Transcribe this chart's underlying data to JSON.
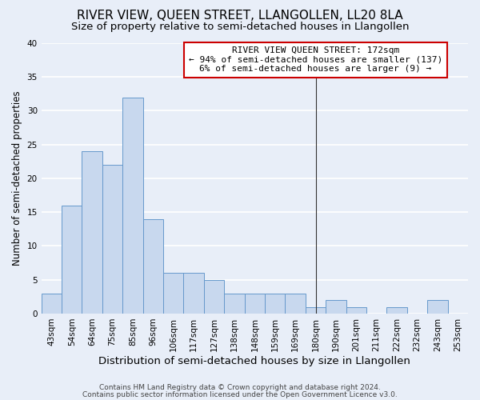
{
  "title": "RIVER VIEW, QUEEN STREET, LLANGOLLEN, LL20 8LA",
  "subtitle": "Size of property relative to semi-detached houses in Llangollen",
  "xlabel": "Distribution of semi-detached houses by size in Llangollen",
  "ylabel": "Number of semi-detached properties",
  "bar_color": "#c8d8ee",
  "bar_edge_color": "#6699cc",
  "bin_labels": [
    "43sqm",
    "54sqm",
    "64sqm",
    "75sqm",
    "85sqm",
    "96sqm",
    "106sqm",
    "117sqm",
    "127sqm",
    "138sqm",
    "148sqm",
    "159sqm",
    "169sqm",
    "180sqm",
    "190sqm",
    "201sqm",
    "211sqm",
    "222sqm",
    "232sqm",
    "243sqm",
    "253sqm"
  ],
  "bar_heights": [
    3,
    16,
    24,
    22,
    32,
    14,
    6,
    6,
    5,
    3,
    3,
    3,
    3,
    1,
    2,
    1,
    0,
    1,
    0,
    2,
    0
  ],
  "ylim": [
    0,
    40
  ],
  "yticks": [
    0,
    5,
    10,
    15,
    20,
    25,
    30,
    35,
    40
  ],
  "vline_x": 13.0,
  "vline_color": "#333333",
  "annotation_title": "RIVER VIEW QUEEN STREET: 172sqm",
  "annotation_line1": "← 94% of semi-detached houses are smaller (137)",
  "annotation_line2": "6% of semi-detached houses are larger (9) →",
  "annotation_box_color": "#ffffff",
  "annotation_box_edge": "#cc0000",
  "footer1": "Contains HM Land Registry data © Crown copyright and database right 2024.",
  "footer2": "Contains public sector information licensed under the Open Government Licence v3.0.",
  "background_color": "#e8eef8",
  "grid_color": "#ffffff",
  "title_fontsize": 11,
  "subtitle_fontsize": 9.5,
  "xlabel_fontsize": 9.5,
  "ylabel_fontsize": 8.5,
  "tick_fontsize": 7.5,
  "footer_fontsize": 6.5,
  "ann_fontsize": 8
}
